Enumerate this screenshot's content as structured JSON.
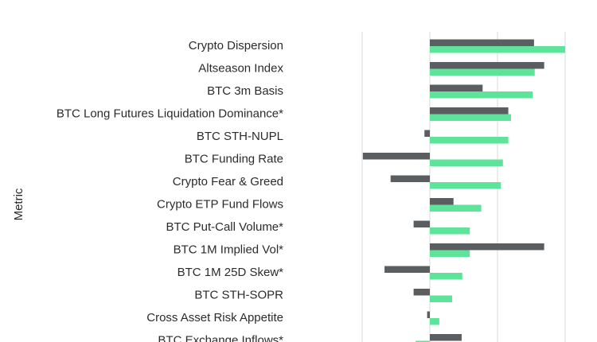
{
  "chart_data": {
    "type": "bar",
    "orientation": "horizontal",
    "y_label": "Metric",
    "categories": [
      "Crypto Dispersion",
      "Altseason Index",
      "BTC 3m Basis",
      "BTC Long Futures Liquidation Dominance*",
      "BTC STH-NUPL",
      "BTC Funding Rate",
      "Crypto Fear & Greed",
      "Crypto ETP Fund Flows",
      "BTC Put-Call Volume*",
      "BTC 1M Implied Vol*",
      "BTC 1M 25D Skew*",
      "BTC STH-SOPR",
      "Cross Asset Risk Appetite",
      "BTC Exchange Inflows*"
    ],
    "series": [
      {
        "color": "#5b5e61",
        "values": [
          1.54,
          1.69,
          0.78,
          1.16,
          -0.08,
          -0.99,
          -0.58,
          0.35,
          -0.24,
          1.69,
          -0.67,
          -0.24,
          -0.04,
          0.47
        ]
      },
      {
        "color": "#5ee39a",
        "values": [
          2.0,
          1.55,
          1.52,
          1.2,
          1.16,
          1.08,
          1.05,
          0.76,
          0.59,
          0.59,
          0.48,
          0.33,
          0.14,
          -0.21
        ]
      }
    ],
    "xlim": [
      -1,
      2.1
    ],
    "xticks": [
      -1,
      0,
      1,
      2
    ],
    "grid": true
  }
}
